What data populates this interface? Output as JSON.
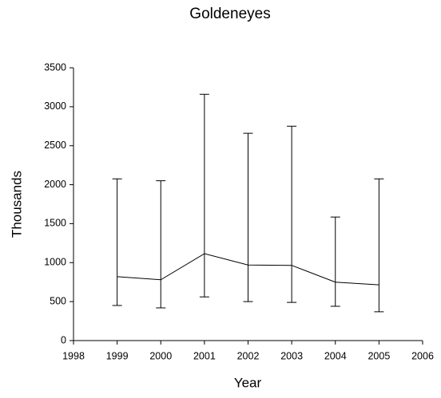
{
  "chart_data": {
    "type": "line",
    "title": "Goldeneyes",
    "x_label": "Year",
    "y_label": "Thousands",
    "x": [
      1999,
      2000,
      2001,
      2002,
      2003,
      2004,
      2005
    ],
    "values": [
      820,
      780,
      1115,
      970,
      965,
      750,
      715
    ],
    "error_low": [
      450,
      420,
      560,
      500,
      490,
      440,
      370
    ],
    "error_high": [
      2075,
      2050,
      3160,
      2660,
      2750,
      1585,
      2075
    ],
    "color": "#000000",
    "xlim": [
      1998,
      2006
    ],
    "xticks": [
      1998,
      1999,
      2000,
      2001,
      2002,
      2003,
      2004,
      2005,
      2006
    ],
    "ylim": [
      0,
      3500
    ],
    "yticks": [
      0,
      500,
      1000,
      1500,
      2000,
      2500,
      3000,
      3500
    ]
  }
}
